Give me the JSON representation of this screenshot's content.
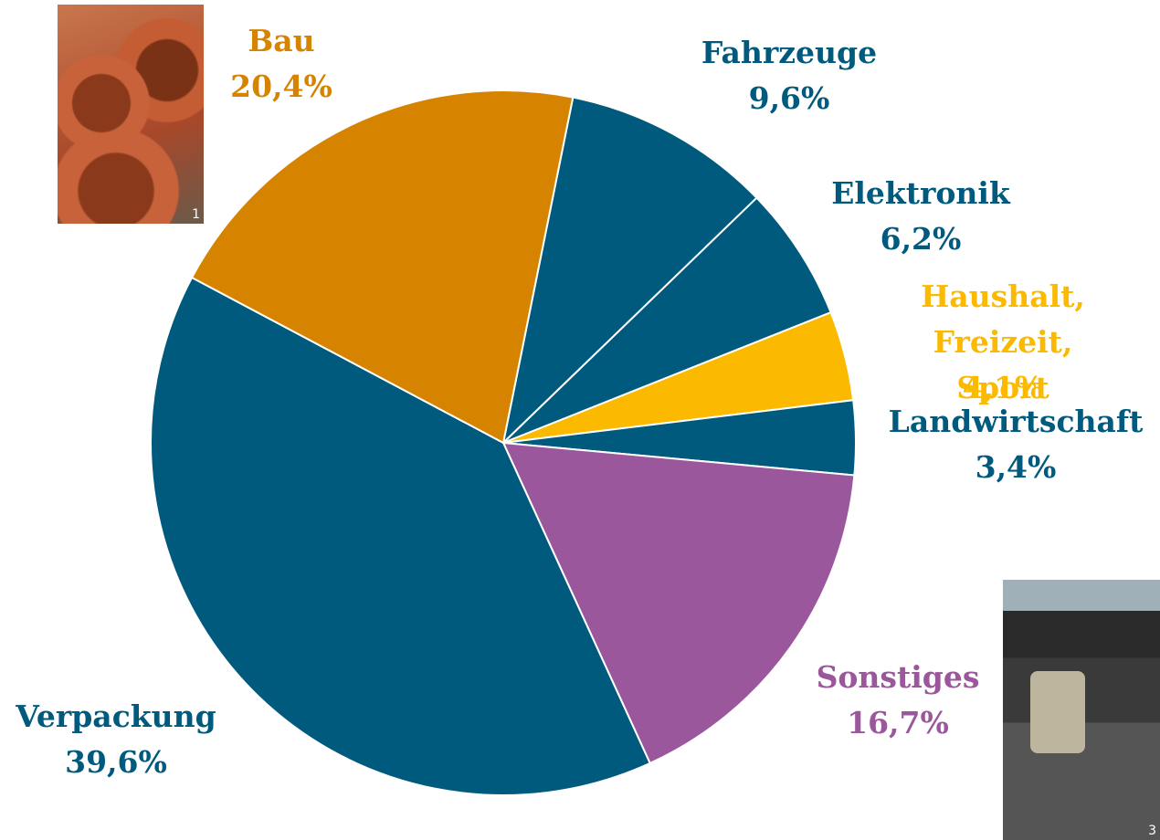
{
  "chart_data": {
    "type": "pie",
    "categories": [
      "Fahrzeuge",
      "Elektronik",
      "Haushalt,\nFreizeit, Sport",
      "Landwirtschaft",
      "Sonstiges",
      "Verpackung",
      "Bau"
    ],
    "values": [
      9.6,
      6.2,
      4.1,
      3.4,
      16.7,
      39.6,
      20.4
    ],
    "value_labels": [
      "9,6%",
      "6,2%",
      "4,1%",
      "3,4%",
      "16,7%",
      "39,6%",
      "20,4%"
    ],
    "colors": [
      "#005a7d",
      "#005a7d",
      "#fbb900",
      "#005a7d",
      "#9b579b",
      "#005a7d",
      "#d68400"
    ]
  },
  "images": [
    {
      "caption": "1"
    },
    {
      "caption": "3"
    }
  ]
}
